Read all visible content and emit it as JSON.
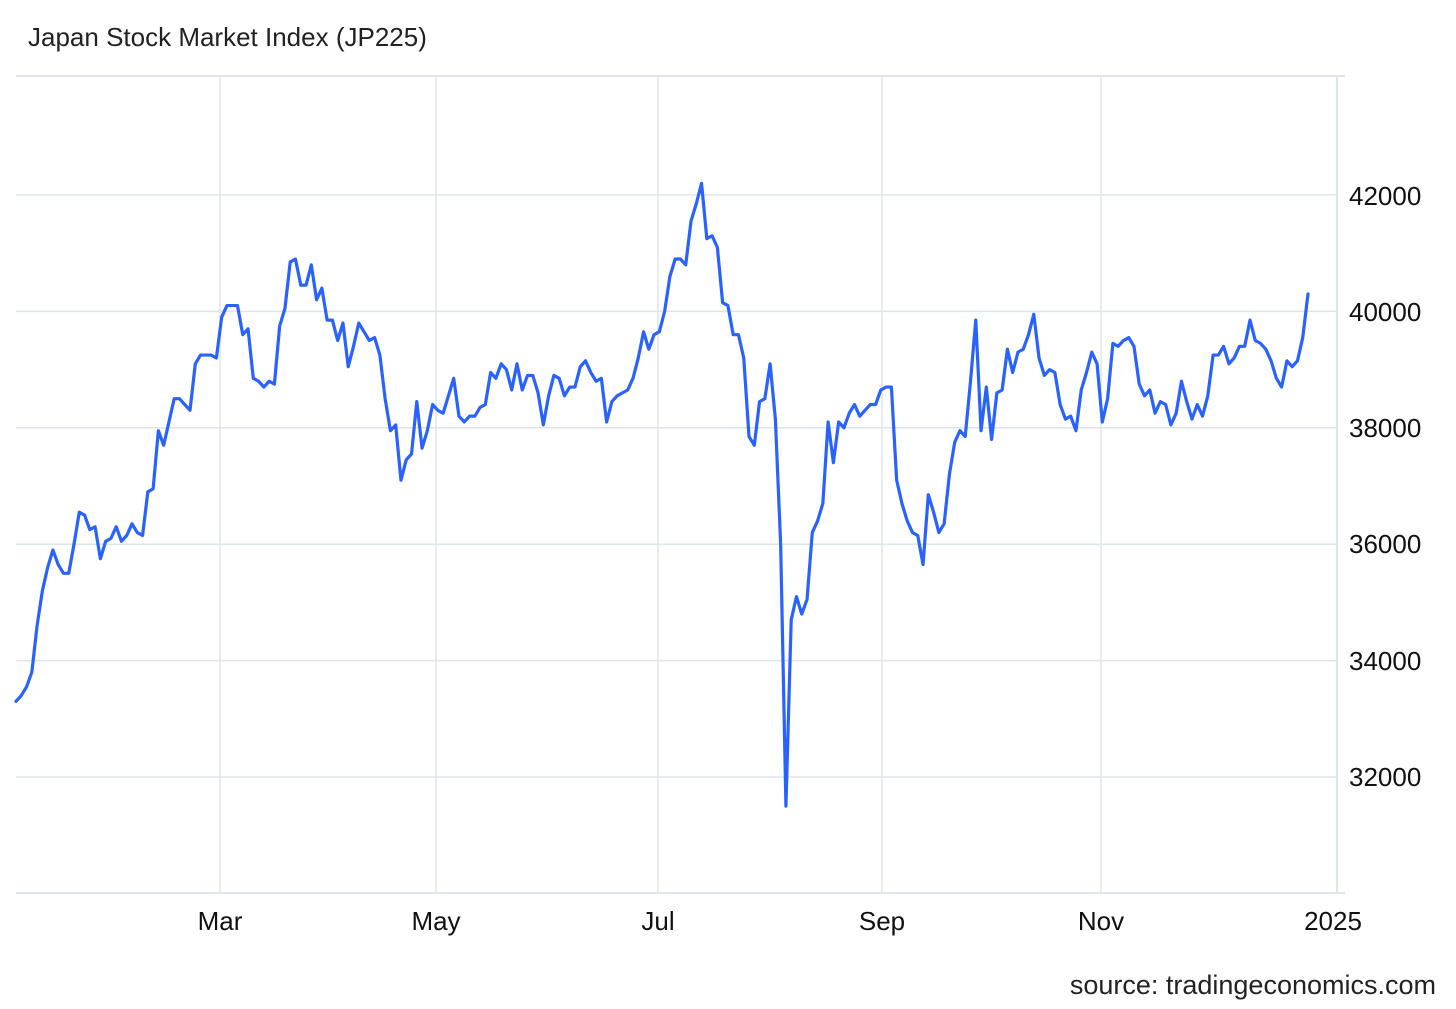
{
  "chart_data": {
    "type": "line",
    "title": "Japan Stock Market Index (JP225)",
    "xlabel": "",
    "ylabel": "",
    "source": "source: tradingeconomics.com",
    "x_tick_labels": [
      "Mar",
      "May",
      "Jul",
      "Sep",
      "Nov",
      "2025"
    ],
    "y_tick_labels": [
      "32000",
      "34000",
      "36000",
      "38000",
      "40000",
      "42000"
    ],
    "ylim": [
      30000,
      44000
    ],
    "grid": true,
    "line_color": "#2962ff",
    "series": [
      {
        "values": [
          33300,
          33400,
          33550,
          33800,
          34600,
          35200,
          35600,
          35900,
          35650,
          35500,
          35500,
          36000,
          36550,
          36500,
          36250,
          36300,
          35750,
          36050,
          36100,
          36300,
          36050,
          36150,
          36350,
          36200,
          36150,
          36900,
          36950,
          37950,
          37700,
          38100,
          38500,
          38500,
          38400,
          38300,
          39100,
          39250,
          39250,
          39250,
          39200,
          39900,
          40100,
          40100,
          40100,
          39600,
          39700,
          38850,
          38800,
          38700,
          38800,
          38750,
          39750,
          40050,
          40850,
          40900,
          40450,
          40450,
          40800,
          40200,
          40400,
          39850,
          39850,
          39500,
          39800,
          39050,
          39400,
          39800,
          39650,
          39500,
          39550,
          39250,
          38500,
          37950,
          38050,
          37100,
          37450,
          37550,
          38450,
          37650,
          37950,
          38400,
          38300,
          38250,
          38550,
          38850,
          38200,
          38100,
          38200,
          38200,
          38350,
          38400,
          38950,
          38850,
          39100,
          39000,
          38650,
          39100,
          38650,
          38900,
          38900,
          38600,
          38050,
          38550,
          38900,
          38850,
          38550,
          38700,
          38700,
          39050,
          39150,
          38950,
          38800,
          38850,
          38100,
          38450,
          38550,
          38600,
          38650,
          38850,
          39200,
          39650,
          39350,
          39600,
          39650,
          40000,
          40600,
          40900,
          40900,
          40800,
          41550,
          41850,
          42200,
          41250,
          41300,
          41100,
          40150,
          40100,
          39600,
          39600,
          39200,
          37850,
          37700,
          38450,
          38500,
          39100,
          38150,
          36000,
          31500,
          34700,
          35100,
          34800,
          35050,
          36200,
          36400,
          36700,
          38100,
          37400,
          38100,
          38000,
          38250,
          38400,
          38200,
          38300,
          38400,
          38400,
          38650,
          38700,
          38700,
          37100,
          36700,
          36400,
          36200,
          36150,
          35650,
          36850,
          36550,
          36200,
          36350,
          37200,
          37750,
          37950,
          37850,
          38800,
          39850,
          37950,
          38700,
          37800,
          38600,
          38650,
          39350,
          38950,
          39300,
          39350,
          39600,
          39950,
          39200,
          38900,
          39000,
          38950,
          38400,
          38150,
          38200,
          37950,
          38650,
          38950,
          39300,
          39100,
          38100,
          38500,
          39450,
          39400,
          39500,
          39550,
          39400,
          38750,
          38550,
          38650,
          38250,
          38450,
          38400,
          38050,
          38250,
          38800,
          38450,
          38150,
          38400,
          38200,
          38550,
          39250,
          39250,
          39400,
          39100,
          39200,
          39400,
          39400,
          39850,
          39500,
          39450,
          39350,
          39150,
          38850,
          38700,
          39150,
          39050,
          39150,
          39550,
          40300
        ]
      }
    ]
  }
}
